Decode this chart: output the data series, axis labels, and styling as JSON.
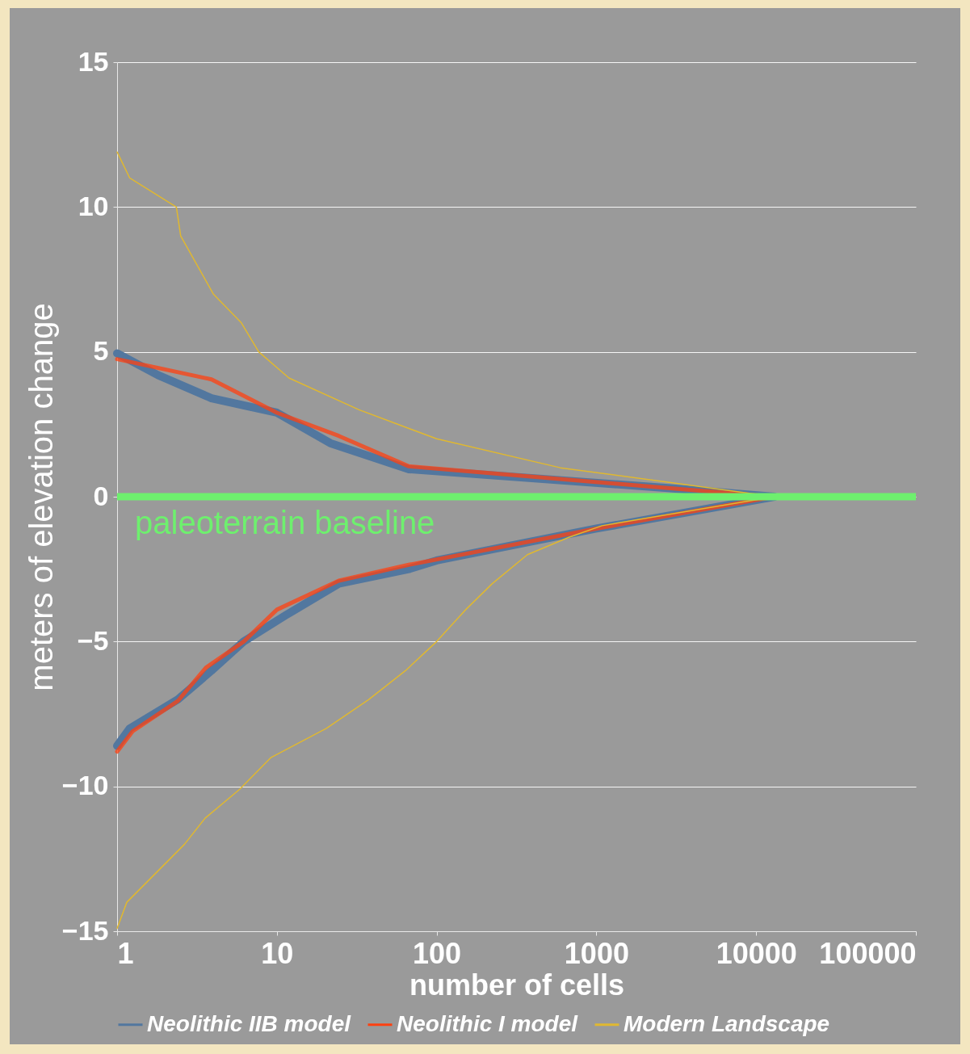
{
  "chart_data": {
    "type": "line",
    "xlabel": "number of cells",
    "ylabel": "meters of elevation change",
    "log": "x",
    "xlim": [
      1,
      100000
    ],
    "xticks": [
      1,
      10,
      100,
      1000,
      10000,
      100000
    ],
    "ylim": [
      -15,
      15
    ],
    "yticks": [
      -15,
      -10,
      -5,
      0,
      5,
      10,
      15
    ],
    "grid": "y",
    "legend": "bottom",
    "marker": "none",
    "series": [
      {
        "name": "Neolithic IIB model",
        "color": "#52779f",
        "x": [
          1,
          1.8,
          3.9,
          10,
          21.6,
          67,
          2800,
          13000,
          1000,
          100,
          67,
          24.4,
          11.3,
          6.2,
          3.9,
          2.4,
          1.2,
          1
        ],
        "values": [
          4.95,
          4.2,
          3.4,
          2.9,
          1.85,
          0.95,
          0.3,
          0,
          -1.1,
          -2.2,
          -2.5,
          -3.0,
          -4.1,
          -5.0,
          -6.0,
          -7.0,
          -8.0,
          -8.6
        ]
      },
      {
        "name": "Neolithic I model",
        "color": "#ff4010",
        "x": [
          1,
          3.9,
          10,
          24.4,
          67,
          2800,
          13000,
          1000,
          67,
          24.4,
          10,
          6.2,
          3.6,
          2.4,
          1.25,
          1
        ],
        "values": [
          4.75,
          4.05,
          2.9,
          2.1,
          1.05,
          0.3,
          0,
          -1.1,
          -2.35,
          -2.9,
          -3.9,
          -5.0,
          -5.9,
          -7.05,
          -8.1,
          -8.8
        ]
      },
      {
        "name": "Modern Landscape",
        "color": "#e0b830",
        "x": [
          1,
          1.2,
          2.35,
          2.5,
          4,
          6,
          7.7,
          11.9,
          32.7,
          100,
          595,
          2800,
          13000,
          1085,
          673,
          370,
          223,
          152,
          100,
          64,
          37.6,
          20.4,
          9.2,
          5.85,
          3.55,
          2.64,
          1.15,
          1
        ],
        "values": [
          11.9,
          11.0,
          10.0,
          9.0,
          7.0,
          6.0,
          5.0,
          4.1,
          3.0,
          2.0,
          1.0,
          0.5,
          0,
          -1.0,
          -1.4,
          -2.0,
          -3.0,
          -3.9,
          -5.0,
          -6.0,
          -7.0,
          -8.0,
          -9.0,
          -10.1,
          -11.1,
          -12.0,
          -14.0,
          -14.9
        ]
      }
    ],
    "ref_lines": [
      {
        "axis": "y",
        "value": 0,
        "label": "paleoterrain baseline",
        "color": "#6ef06e"
      }
    ]
  }
}
